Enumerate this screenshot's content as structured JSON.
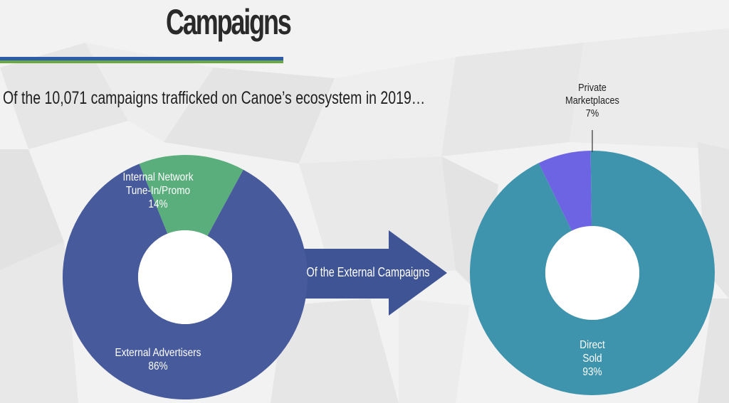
{
  "header": {
    "title": "Campaigns",
    "subtitle": "Of the 10,071 campaigns trafficked on Canoe’s ecosystem in 2019…",
    "arrow_label": "Of the External Campaigns"
  },
  "colors": {
    "external": "#475a9b",
    "internal": "#5aae7c",
    "direct": "#3e93ad",
    "private": "#6d64e3",
    "rule_blue": "#2f5ca8",
    "rule_green": "#6aa843"
  },
  "chart_data": [
    {
      "type": "pie",
      "donut": true,
      "slices": [
        {
          "name_lines": [
            "Internal Network",
            "Tune-In/Promo"
          ],
          "value": 14,
          "value_label": "14%"
        },
        {
          "name_lines": [
            "External Advertisers"
          ],
          "value": 86,
          "value_label": "86%"
        }
      ]
    },
    {
      "type": "pie",
      "donut": true,
      "slices": [
        {
          "name_lines": [
            "Private",
            "Marketplaces"
          ],
          "value": 7,
          "value_label": "7%"
        },
        {
          "name_lines": [
            "Direct",
            "Sold"
          ],
          "value": 93,
          "value_label": "93%"
        }
      ]
    }
  ]
}
